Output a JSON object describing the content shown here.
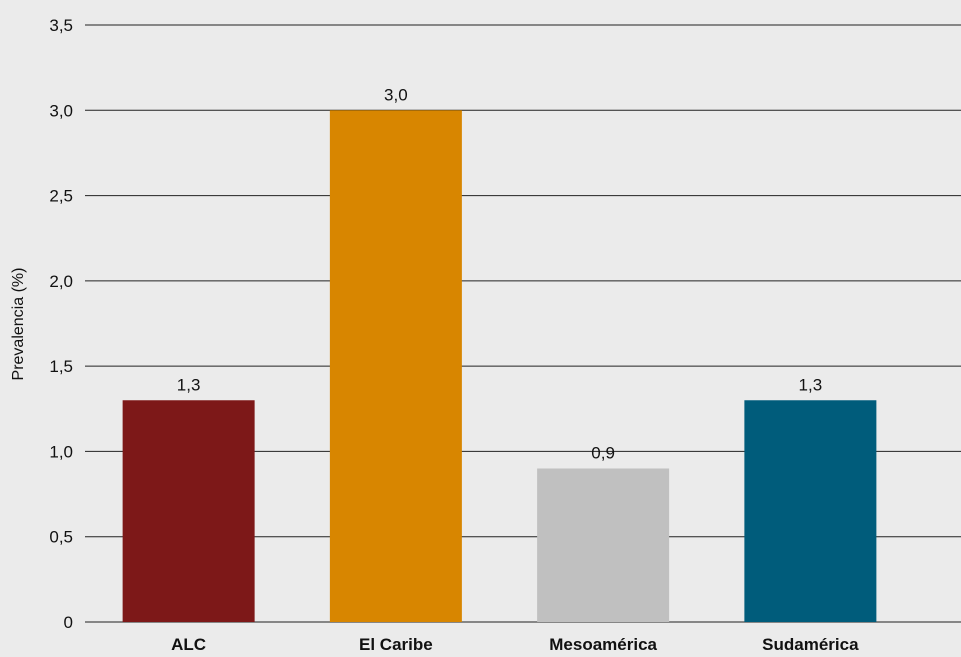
{
  "chart_data": {
    "type": "bar",
    "categories": [
      "ALC",
      "El Caribe",
      "Mesoamérica",
      "Sudamérica"
    ],
    "values": [
      1.3,
      3.0,
      0.9,
      1.3
    ],
    "value_labels": [
      "1,3",
      "3,0",
      "0,9",
      "1,3"
    ],
    "colors": [
      "#7d1818",
      "#d88600",
      "#c0c0c0",
      "#005c7b"
    ],
    "title": "",
    "xlabel": "",
    "ylabel": "Prevalencia (%)",
    "ylim": [
      0,
      3.5
    ],
    "yticks": [
      0,
      0.5,
      1.0,
      1.5,
      2.0,
      2.5,
      3.0,
      3.5
    ],
    "ytick_labels": [
      "0",
      "0,5",
      "1,0",
      "1,5",
      "2,0",
      "2,5",
      "3,0",
      "3,5"
    ],
    "grid": true,
    "legend": "none"
  }
}
